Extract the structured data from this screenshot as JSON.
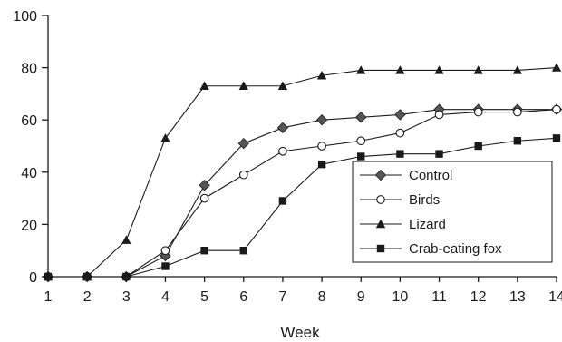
{
  "chart_data": {
    "type": "line",
    "title": "",
    "xlabel": "Week",
    "ylabel": "",
    "x": [
      1,
      2,
      3,
      4,
      5,
      6,
      7,
      8,
      9,
      10,
      11,
      12,
      13,
      14
    ],
    "xlim": [
      1,
      14
    ],
    "ylim": [
      0,
      100
    ],
    "x_ticks": [
      "1",
      "2",
      "3",
      "4",
      "5",
      "6",
      "7",
      "8",
      "9",
      "10",
      "11",
      "12",
      "13",
      "14"
    ],
    "y_ticks": [
      "0",
      "20",
      "40",
      "60",
      "80",
      "100"
    ],
    "grid": false,
    "legend_position": "bottom-right",
    "series": [
      {
        "name": "Control",
        "marker": "diamond",
        "color": "#555555",
        "values": [
          0,
          0,
          0,
          8,
          35,
          51,
          57,
          60,
          61,
          62,
          64,
          64,
          64,
          64
        ]
      },
      {
        "name": "Birds",
        "marker": "circle-open",
        "color": "#1a1a1a",
        "values": [
          0,
          0,
          0,
          10,
          30,
          39,
          48,
          50,
          52,
          55,
          62,
          63,
          63,
          64
        ]
      },
      {
        "name": "Lizard",
        "marker": "triangle",
        "color": "#1a1a1a",
        "values": [
          0,
          0,
          14,
          53,
          73,
          73,
          73,
          77,
          79,
          79,
          79,
          79,
          79,
          80
        ]
      },
      {
        "name": "Crab-eating fox",
        "marker": "square",
        "color": "#1a1a1a",
        "values": [
          0,
          0,
          0,
          4,
          10,
          10,
          29,
          43,
          46,
          47,
          47,
          50,
          52,
          53
        ]
      }
    ]
  }
}
